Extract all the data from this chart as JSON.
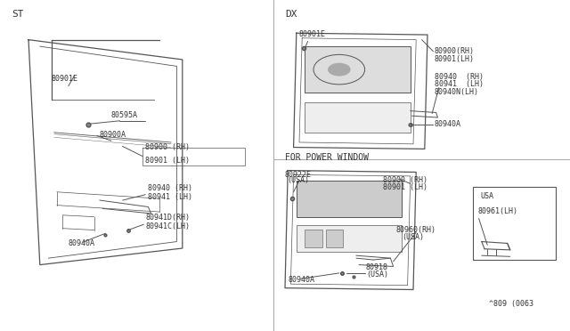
{
  "bg_color": "#ffffff",
  "line_color": "#555555",
  "text_color": "#333333",
  "divider_color": "#aaaaaa",
  "title_ST": "ST",
  "title_DX": "DX",
  "title_PW": "FOR POWER WINDOW",
  "footer": "^809 (0063",
  "font_size_label": 6.5,
  "font_size_section": 8,
  "font_size_footer": 6
}
